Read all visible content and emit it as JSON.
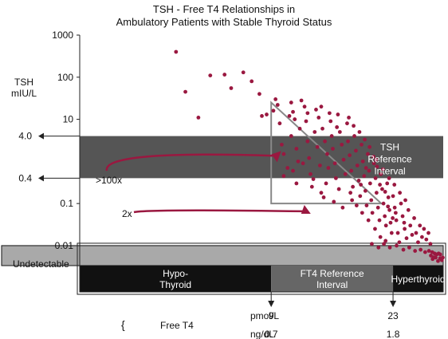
{
  "chart_data": {
    "type": "scatter",
    "title_line1": "TSH - Free T4 Relationships in",
    "title_line2": "Ambulatory Patients with Stable Thyroid Status",
    "ylabel_line1": "TSH",
    "ylabel_line2": "mIU/L",
    "y_scale": "log",
    "ylim": [
      0.0035,
      1000
    ],
    "y_ticks": [
      {
        "value": 1000,
        "label": "1000"
      },
      {
        "value": 100,
        "label": "100"
      },
      {
        "value": 10,
        "label": "10"
      },
      {
        "value": 4.0,
        "label": "4.0",
        "arrow": true
      },
      {
        "value": 0.4,
        "label": "0.4",
        "arrow": true
      },
      {
        "value": 0.1,
        "label": "0.1"
      },
      {
        "value": 0.01,
        "label": "0.01"
      }
    ],
    "x_scale": "reciprocal",
    "xlabel": "Free T4",
    "xlim": [
      4.6,
      64
    ],
    "x_ticks": [
      {
        "value": 9,
        "label": "9",
        "alt_label": "0.7"
      },
      {
        "value": 23,
        "label": "23",
        "alt_label": "1.8"
      }
    ],
    "x_units": [
      "pmol/L",
      "ng/dL"
    ],
    "tsh_reference_interval": {
      "low": 0.4,
      "high": 4.0,
      "label_lines": [
        "TSH",
        "Reference",
        "Interval"
      ],
      "color": "#555555"
    },
    "undetectable_band": {
      "high": 0.01,
      "label": "Undetectable",
      "color": "#a9a9a9"
    },
    "x_bands": [
      {
        "from": 4.6,
        "to": 9,
        "label_lines": [
          "Hypo-",
          "Thyroid"
        ],
        "color": "#111111",
        "text_color": "#ffffff"
      },
      {
        "from": 9,
        "to": 23,
        "label_lines": [
          "FT4 Reference",
          "Interval"
        ],
        "color": "#666666",
        "text_color": "#ffffff"
      },
      {
        "from": 23,
        "to": 64,
        "label_lines": [
          "Hyperthyroid"
        ],
        "color": "#111111",
        "text_color": "#ffffff"
      }
    ],
    "annotation_triangle": {
      "vertices": [
        [
          9,
          25
        ],
        [
          9,
          0.1
        ],
        [
          20,
          0.1
        ]
      ],
      "color": "#888888"
    },
    "annotations": [
      {
        "text": ">100x",
        "target": [
          9.8,
          2.5
        ]
      },
      {
        "text": "2x",
        "target": [
          11.5,
          0.12
        ]
      }
    ],
    "point_color": "#9a1840",
    "points": [
      [
        6.1,
        400
      ],
      [
        6.3,
        45
      ],
      [
        6.6,
        11
      ],
      [
        6.9,
        110
      ],
      [
        7.3,
        115
      ],
      [
        7.5,
        55
      ],
      [
        7.9,
        130
      ],
      [
        8.2,
        80
      ],
      [
        8.5,
        40
      ],
      [
        8.6,
        12
      ],
      [
        9.1,
        16
      ],
      [
        8.8,
        13
      ],
      [
        9.2,
        30
      ],
      [
        9.3,
        22
      ],
      [
        9.4,
        8
      ],
      [
        9.5,
        2.5
      ],
      [
        9.6,
        1.5
      ],
      [
        9.8,
        0.7
      ],
      [
        9.6,
        0.45
      ],
      [
        10.0,
        25
      ],
      [
        10.1,
        15
      ],
      [
        10.2,
        10
      ],
      [
        10.0,
        4
      ],
      [
        10.3,
        2
      ],
      [
        10.4,
        1
      ],
      [
        10.1,
        0.6
      ],
      [
        10.3,
        0.3
      ],
      [
        10.5,
        6
      ],
      [
        10.6,
        28
      ],
      [
        10.8,
        20
      ],
      [
        10.9,
        9
      ],
      [
        11.0,
        3
      ],
      [
        11.1,
        1.2
      ],
      [
        11.2,
        0.5
      ],
      [
        11.3,
        0.25
      ],
      [
        11.0,
        14
      ],
      [
        11.5,
        5
      ],
      [
        11.7,
        2.2
      ],
      [
        11.9,
        0.8
      ],
      [
        11.8,
        11
      ],
      [
        12.0,
        20
      ],
      [
        12.1,
        6
      ],
      [
        12.3,
        3
      ],
      [
        12.5,
        1.5
      ],
      [
        12.6,
        0.7
      ],
      [
        12.4,
        0.3
      ],
      [
        12.8,
        9
      ],
      [
        12.9,
        4
      ],
      [
        13.0,
        2
      ],
      [
        13.2,
        0.9
      ],
      [
        13.3,
        0.4
      ],
      [
        13.5,
        13
      ],
      [
        13.7,
        5
      ],
      [
        13.9,
        2.5
      ],
      [
        14.1,
        1.1
      ],
      [
        14.3,
        0.5
      ],
      [
        14.5,
        8
      ],
      [
        14.6,
        3
      ],
      [
        14.8,
        1.4
      ],
      [
        15.0,
        0.6
      ],
      [
        15.2,
        0.25
      ],
      [
        15.4,
        4
      ],
      [
        15.6,
        1.8
      ],
      [
        15.8,
        0.8
      ],
      [
        16.0,
        0.35
      ],
      [
        16.2,
        0.15
      ],
      [
        16.4,
        2.5
      ],
      [
        16.6,
        1
      ],
      [
        16.8,
        0.45
      ],
      [
        17.0,
        0.2
      ],
      [
        17.2,
        0.09
      ],
      [
        17.4,
        1.5
      ],
      [
        17.6,
        0.6
      ],
      [
        17.8,
        0.3
      ],
      [
        18.0,
        0.12
      ],
      [
        18.2,
        0.06
      ],
      [
        18.5,
        0.9
      ],
      [
        18.8,
        0.4
      ],
      [
        19.0,
        0.18
      ],
      [
        19.3,
        0.08
      ],
      [
        19.6,
        0.04
      ],
      [
        19.9,
        0.5
      ],
      [
        20.2,
        0.22
      ],
      [
        20.5,
        0.1
      ],
      [
        20.8,
        0.05
      ],
      [
        21.1,
        0.03
      ],
      [
        21.4,
        0.3
      ],
      [
        21.7,
        0.14
      ],
      [
        22.0,
        0.07
      ],
      [
        22.3,
        0.035
      ],
      [
        22.6,
        0.02
      ],
      [
        23.0,
        0.15
      ],
      [
        23.5,
        0.08
      ],
      [
        24.0,
        0.04
      ],
      [
        24.5,
        0.02
      ],
      [
        25.0,
        0.012
      ],
      [
        25.6,
        0.1
      ],
      [
        26.2,
        0.05
      ],
      [
        27.0,
        0.025
      ],
      [
        27.8,
        0.015
      ],
      [
        28.6,
        0.07
      ],
      [
        29.5,
        0.03
      ],
      [
        30.4,
        0.018
      ],
      [
        31.5,
        0.045
      ],
      [
        32.6,
        0.02
      ],
      [
        33.8,
        0.012
      ],
      [
        35.0,
        0.03
      ],
      [
        36.5,
        0.016
      ],
      [
        38.0,
        0.025
      ],
      [
        40.0,
        0.014
      ],
      [
        42.0,
        0.02
      ],
      [
        44.0,
        0.011
      ],
      [
        18.1,
        0.011
      ],
      [
        19.4,
        0.009
      ],
      [
        20.6,
        0.011
      ],
      [
        22.1,
        0.009
      ],
      [
        24.1,
        0.01
      ],
      [
        26.5,
        0.008
      ],
      [
        29.0,
        0.009
      ],
      [
        32.0,
        0.0075
      ],
      [
        35.5,
        0.008
      ],
      [
        39.0,
        0.007
      ],
      [
        42.5,
        0.0075
      ],
      [
        46.0,
        0.007
      ],
      [
        49.0,
        0.0065
      ],
      [
        52.0,
        0.0062
      ],
      [
        55.0,
        0.0065
      ],
      [
        58.0,
        0.0062
      ],
      [
        46.5,
        0.0048
      ],
      [
        50.5,
        0.0052
      ],
      [
        54.0,
        0.0043
      ],
      [
        57.5,
        0.005
      ],
      [
        61.0,
        0.0045
      ],
      [
        63.0,
        0.0052
      ],
      [
        44.5,
        0.0058
      ],
      [
        48.0,
        0.0053
      ],
      [
        12.2,
        0.14
      ],
      [
        13.6,
        0.22
      ],
      [
        15.1,
        0.12
      ],
      [
        14.0,
        0.08
      ],
      [
        16.5,
        0.06
      ],
      [
        17.5,
        0.04
      ],
      [
        18.7,
        0.025
      ],
      [
        19.8,
        0.016
      ],
      [
        21.0,
        0.013
      ],
      [
        13.4,
        6.5
      ],
      [
        12.7,
        14
      ],
      [
        11.6,
        17
      ],
      [
        14.7,
        11
      ],
      [
        15.3,
        7
      ],
      [
        16.1,
        5
      ],
      [
        16.9,
        3.3
      ],
      [
        17.7,
        2.2
      ],
      [
        18.4,
        1.3
      ],
      [
        19.1,
        0.75
      ],
      [
        19.7,
        0.28
      ],
      [
        20.9,
        0.19
      ],
      [
        21.6,
        0.085
      ],
      [
        22.9,
        0.045
      ],
      [
        9.9,
        12
      ],
      [
        10.7,
        0.9
      ],
      [
        11.4,
        0.38
      ],
      [
        12.0,
        0.18
      ],
      [
        13.1,
        0.11
      ],
      [
        17.1,
        0.7
      ],
      [
        18.9,
        1.1
      ],
      [
        20.4,
        0.65
      ],
      [
        21.9,
        0.4
      ],
      [
        23.4,
        0.28
      ],
      [
        25.2,
        0.18
      ],
      [
        27.3,
        0.12
      ],
      [
        15.7,
        0.09
      ],
      [
        16.3,
        0.28
      ],
      [
        14.9,
        0.18
      ],
      [
        23.8,
        0.06
      ],
      [
        26.8,
        0.035
      ]
    ]
  }
}
